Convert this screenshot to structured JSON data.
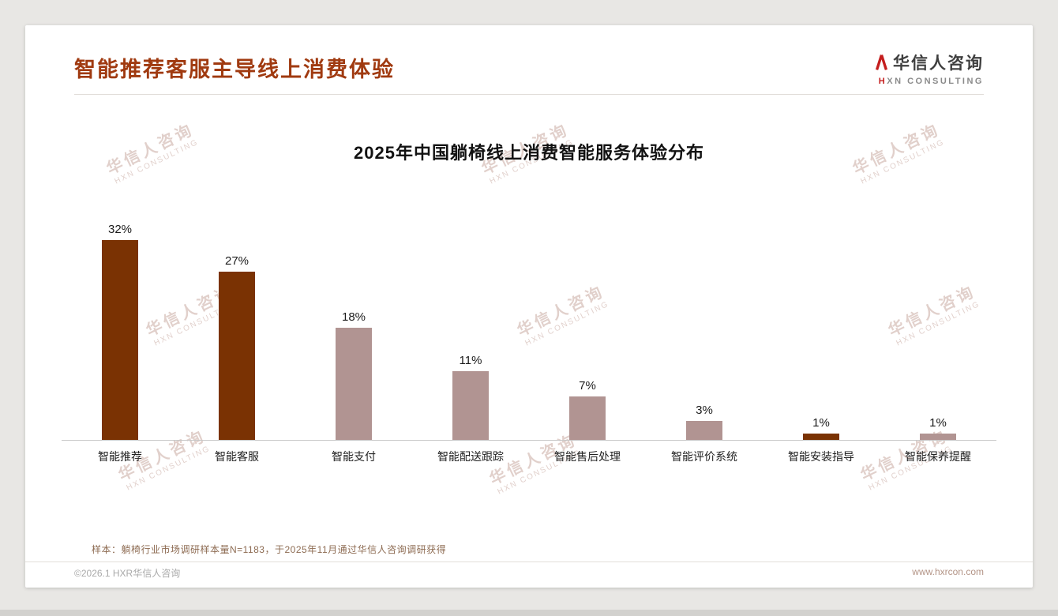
{
  "page": {
    "title": "智能推荐客服主导线上消费体验",
    "logo": {
      "name": "华信人咨询",
      "tagline": "HXN CONSULTING"
    },
    "watermark": {
      "line1": "华信人咨询",
      "line2": "HXN CONSULTING"
    },
    "footer": {
      "sample_note": "样本：躺椅行业市场调研样本量N=1183，于2025年11月通过华信人咨询调研获得",
      "copyright": "©2026.1 HXR华信人咨询",
      "website": "www.hxrcon.com"
    }
  },
  "chart_data": {
    "type": "bar",
    "title": "2025年中国躺椅线上消费智能服务体验分布",
    "categories": [
      "智能推荐",
      "智能客服",
      "智能支付",
      "智能配送跟踪",
      "智能售后处理",
      "智能评价系统",
      "智能安装指导",
      "智能保养提醒"
    ],
    "values": [
      32,
      27,
      18,
      11,
      7,
      3,
      1,
      1
    ],
    "value_labels": [
      "32%",
      "27%",
      "18%",
      "11%",
      "7%",
      "3%",
      "1%",
      "1%"
    ],
    "unit": "%",
    "ylim": [
      0,
      35
    ],
    "grid": false,
    "legend": false,
    "bar_colors": [
      "#7A3203",
      "#7A3203",
      "#B19492",
      "#B19492",
      "#B19492",
      "#B19492",
      "#7A3203",
      "#B19492"
    ],
    "accent_color": "#A03A10",
    "dark_bar_color": "#7A3203",
    "light_bar_color": "#B19492"
  }
}
